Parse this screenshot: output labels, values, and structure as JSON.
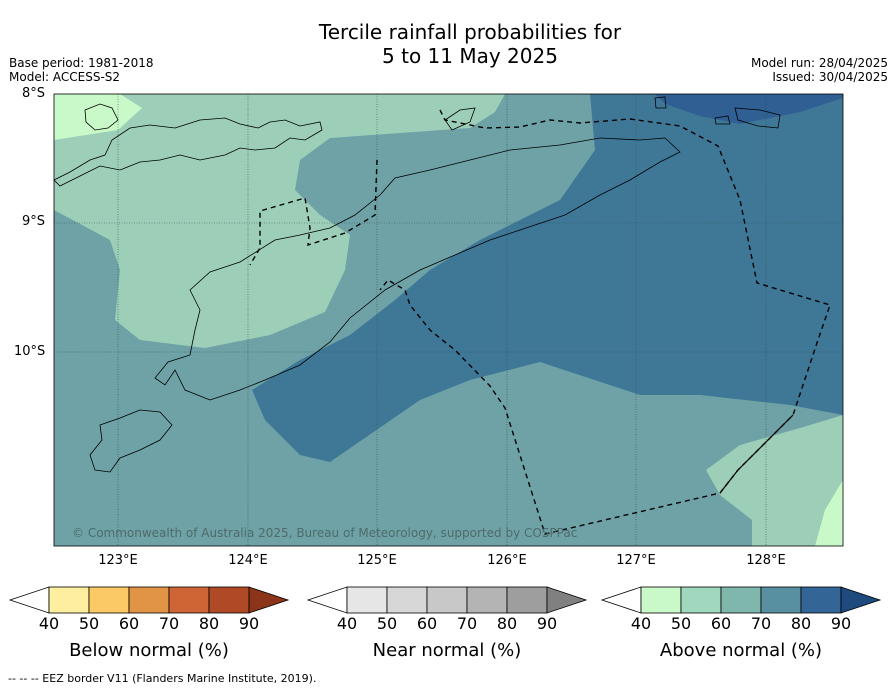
{
  "title_line1": "Tercile rainfall probabilities for",
  "title_line2": "5 to 11 May 2025",
  "base_period": "Base period: 1981-2018",
  "model": "Model: ACCESS-S2",
  "model_run": "Model run: 28/04/2025",
  "issued": "Issued: 30/04/2025",
  "map": {
    "lat_labels": [
      "8°S",
      "9°S",
      "10°S"
    ],
    "lon_labels": [
      "123°E",
      "124°E",
      "125°E",
      "126°E",
      "127°E",
      "128°E"
    ],
    "copyright": "© Commonwealth of Australia 2025, Bureau of Meteorology, supported by COSPPac"
  },
  "colors": {
    "above_40_50": "#c9f9c9",
    "above_50_60": "#9dcfb8",
    "above_60_70": "#6ea2a6",
    "above_70_80": "#3f7897",
    "above_80_90": "#2f5f93",
    "above_90": "#1e4a7e"
  },
  "legends": [
    {
      "caption": "Below normal (%)",
      "ticks": [
        "40",
        "50",
        "60",
        "70",
        "80",
        "90"
      ],
      "colors": [
        "#ffffff",
        "#fdeea0",
        "#fbca66",
        "#e19445",
        "#cf6534",
        "#b04a26",
        "#8b3419"
      ]
    },
    {
      "caption": "Near normal (%)",
      "ticks": [
        "40",
        "50",
        "60",
        "70",
        "80",
        "90"
      ],
      "colors": [
        "#ffffff",
        "#e6e6e6",
        "#d7d7d7",
        "#c8c8c8",
        "#b4b4b4",
        "#9e9e9e",
        "#808080"
      ]
    },
    {
      "caption": "Above normal (%)",
      "ticks": [
        "40",
        "50",
        "60",
        "70",
        "80",
        "90"
      ],
      "colors": [
        "#ffffff",
        "#c9f9c9",
        "#a1d7bf",
        "#80b7ad",
        "#5890a1",
        "#336596",
        "#1e4a7e"
      ]
    }
  ],
  "footnote": "--  --  -- EEZ border V11 (Flanders Marine Institute, 2019)."
}
